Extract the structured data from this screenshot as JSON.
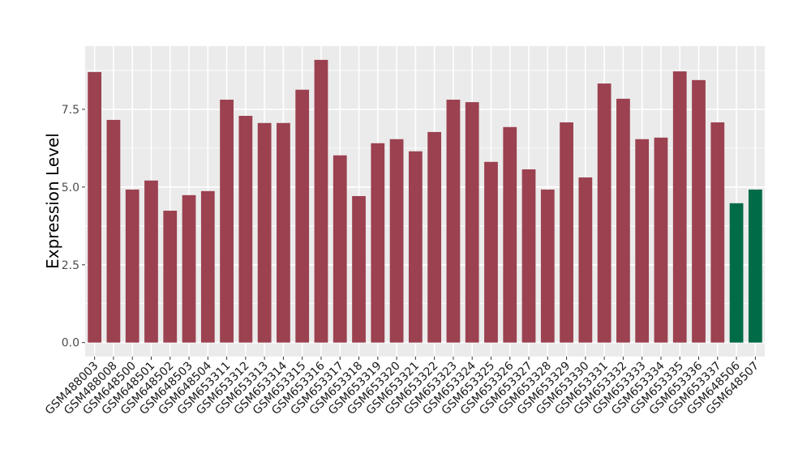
{
  "chart_data": {
    "type": "bar",
    "title": "",
    "xlabel": "",
    "ylabel": "Expression Level",
    "ylim": [
      -0.45,
      9.53
    ],
    "yticks": [
      0.0,
      2.5,
      5.0,
      7.5
    ],
    "ytick_labels": [
      "0.0",
      "2.5",
      "5.0",
      "7.5"
    ],
    "grid": true,
    "legend": "none",
    "colors": {
      "group_a": "#9B4150",
      "group_b": "#006B47",
      "panel": "#EBEBEB",
      "grid": "#FFFFFF"
    },
    "categories": [
      "GSM488003",
      "GSM488008",
      "GSM648500",
      "GSM648501",
      "GSM648502",
      "GSM648503",
      "GSM648504",
      "GSM653311",
      "GSM653312",
      "GSM653313",
      "GSM653314",
      "GSM653315",
      "GSM653316",
      "GSM653317",
      "GSM653318",
      "GSM653319",
      "GSM653320",
      "GSM653321",
      "GSM653322",
      "GSM653323",
      "GSM653324",
      "GSM653325",
      "GSM653326",
      "GSM653327",
      "GSM653328",
      "GSM653329",
      "GSM653330",
      "GSM653331",
      "GSM653332",
      "GSM653333",
      "GSM653334",
      "GSM653335",
      "GSM653336",
      "GSM653337",
      "GSM648506",
      "GSM648507"
    ],
    "values": [
      8.7,
      7.16,
      4.92,
      5.21,
      4.24,
      4.74,
      4.87,
      7.81,
      7.29,
      7.06,
      7.06,
      8.13,
      9.09,
      6.02,
      4.71,
      6.41,
      6.54,
      6.15,
      6.77,
      7.81,
      7.73,
      5.81,
      6.93,
      5.57,
      4.92,
      7.08,
      5.31,
      8.33,
      7.84,
      6.54,
      6.59,
      8.72,
      8.44,
      7.08,
      4.48,
      4.92
    ],
    "groups": [
      "a",
      "a",
      "a",
      "a",
      "a",
      "a",
      "a",
      "a",
      "a",
      "a",
      "a",
      "a",
      "a",
      "a",
      "a",
      "a",
      "a",
      "a",
      "a",
      "a",
      "a",
      "a",
      "a",
      "a",
      "a",
      "a",
      "a",
      "a",
      "a",
      "a",
      "a",
      "a",
      "a",
      "a",
      "b",
      "b"
    ]
  }
}
